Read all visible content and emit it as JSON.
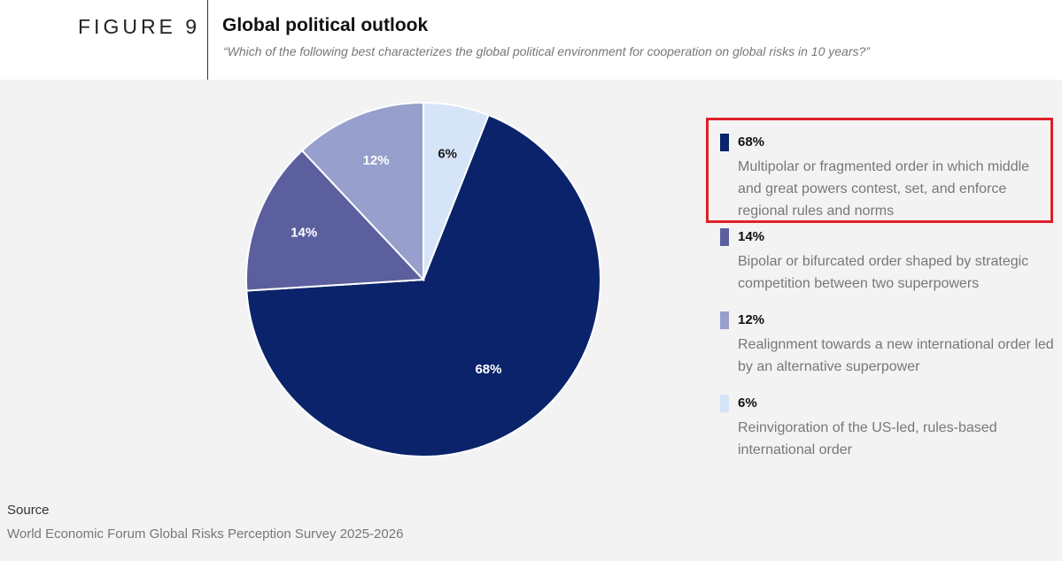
{
  "figure": {
    "label": "FIGURE 9",
    "title": "Global political outlook",
    "subtitle": "“Which of the following best characterizes the global political environment for cooperation on global risks in 10 years?”"
  },
  "chart_data": {
    "type": "pie",
    "title": "Global political outlook",
    "start": "12 o'clock, clockwise",
    "slices": [
      {
        "label": "Reinvigoration of the US-led, rules-based international order",
        "value": 6,
        "display": "6%",
        "color": "#d6e4f7"
      },
      {
        "label": "Multipolar or fragmented order in which middle and great powers contest, set, and enforce regional rules and norms",
        "value": 68,
        "display": "68%",
        "color": "#0a236a"
      },
      {
        "label": "Bipolar or bifurcated order shaped by strategic competition between two superpowers",
        "value": 14,
        "display": "14%",
        "color": "#5b5f9e"
      },
      {
        "label": "Realignment towards a new international order led by an alternative superpower",
        "value": 12,
        "display": "12%",
        "color": "#979fcc"
      }
    ],
    "legend_placement": "right"
  },
  "legend": [
    {
      "pct": "68%",
      "desc": "Multipolar or fragmented order in which middle and great powers contest, set, and enforce regional rules and norms",
      "color": "#0a236a"
    },
    {
      "pct": "14%",
      "desc": "Bipolar or bifurcated order shaped by strategic competition between two superpowers",
      "color": "#5b5f9e"
    },
    {
      "pct": "12%",
      "desc": "Realignment towards a new international order led by an alternative superpower",
      "color": "#979fcc"
    },
    {
      "pct": "6%",
      "desc": "Reinvigoration of the US-led, rules-based international order",
      "color": "#d6e4f7"
    }
  ],
  "highlight_color": "#e0202a",
  "source": {
    "label": "Source",
    "text": "World Economic Forum Global Risks Perception Survey 2025-2026"
  }
}
